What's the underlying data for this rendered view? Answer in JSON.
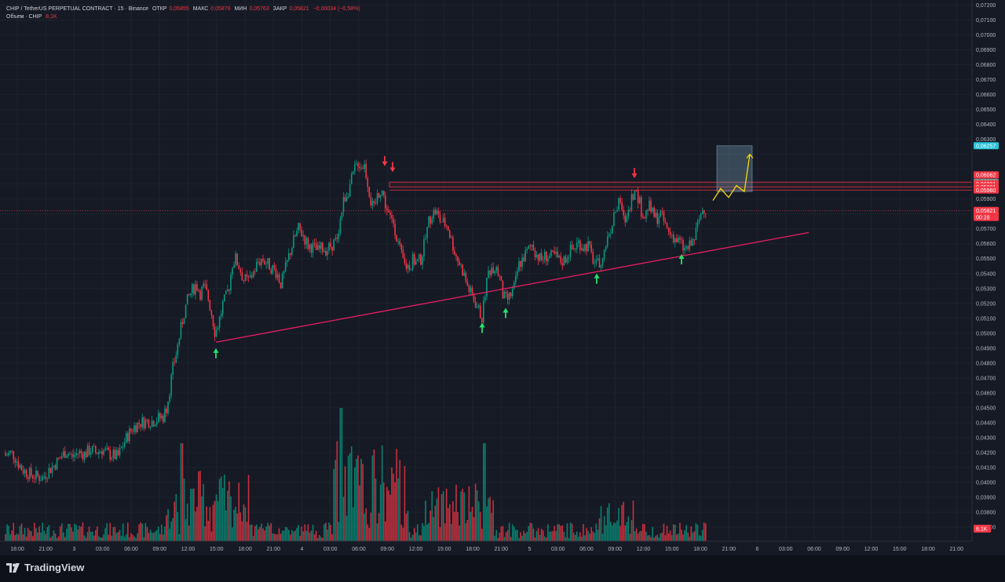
{
  "header": {
    "symbol_line": "CHIP / TetherUS PERPETUAL CONTRACT · 15 · Binance",
    "open_label": "ОТКР",
    "open_value": "0,05855",
    "high_label": "МАКС",
    "high_value": "0,05876",
    "low_label": "МИН",
    "low_value": "0,05763",
    "close_label": "ЗАКР",
    "close_value": "0,05821",
    "change": "−0,00034 (−0,58%)",
    "volume_label": "Объем · CHIP",
    "volume_value": "8,1K"
  },
  "price_axis": {
    "ticks": [
      "0,07200",
      "0,07100",
      "0,07000",
      "0,06900",
      "0,06800",
      "0,06700",
      "0,06600",
      "0,06500",
      "0,06400",
      "0,06300",
      "0,05900",
      "0,05700",
      "0,05600",
      "0,05500",
      "0,05400",
      "0,05300",
      "0,05200",
      "0,05100",
      "0,05000",
      "0,04900",
      "0,04800",
      "0,04700",
      "0,04600",
      "0,04500",
      "0,04400",
      "0,04300",
      "0,04200",
      "0,04100",
      "0,04000",
      "0,03900",
      "0,03800",
      "0,03700"
    ],
    "badges": [
      {
        "label": "0,06257",
        "value": 0.06257,
        "color": "#26c6da"
      },
      {
        "label": "0,06062",
        "value": 0.06062,
        "color": "#f23645"
      },
      {
        "label": "0,06013",
        "value": 0.06013,
        "color": "#808080"
      },
      {
        "label": "0,06001",
        "value": 0.06001,
        "color": "#f23645"
      },
      {
        "label": "0,05981",
        "value": 0.05981,
        "color": "#f23645"
      },
      {
        "label": "0,05960",
        "value": 0.0596,
        "color": "#f23645"
      }
    ],
    "last_price": "0,05821",
    "countdown": "00:28",
    "volume_badge": "8,1K"
  },
  "time_axis": {
    "labels": [
      "18:00",
      "21:00",
      "3",
      "03:00",
      "06:00",
      "09:00",
      "12:00",
      "15:00",
      "18:00",
      "21:00",
      "4",
      "03:00",
      "06:00",
      "09:00",
      "12:00",
      "15:00",
      "18:00",
      "21:00",
      "5",
      "03:00",
      "06:00",
      "09:00",
      "12:00",
      "15:00",
      "18:00",
      "21:00",
      "6",
      "03:00",
      "06:00",
      "09:00",
      "12:00",
      "15:00",
      "18:00",
      "21:00"
    ]
  },
  "chart_data": {
    "type": "candlestick",
    "symbol": "CHIP / TetherUS PERPETUAL CONTRACT",
    "interval": "15",
    "exchange": "Binance",
    "ylim": [
      0.0365,
      0.072
    ],
    "path": [
      [
        0,
        0.043
      ],
      [
        7,
        0.0418
      ],
      [
        14,
        0.042
      ],
      [
        18,
        0.0418
      ],
      [
        23,
        0.0413
      ],
      [
        28,
        0.0409
      ],
      [
        33,
        0.0407
      ],
      [
        40,
        0.0405
      ],
      [
        46,
        0.0404
      ],
      [
        54,
        0.0403
      ],
      [
        60,
        0.0407
      ],
      [
        68,
        0.0411
      ],
      [
        76,
        0.0416
      ],
      [
        84,
        0.0421
      ],
      [
        92,
        0.0417
      ],
      [
        100,
        0.042
      ],
      [
        108,
        0.0419
      ],
      [
        115,
        0.0422
      ],
      [
        122,
        0.042
      ],
      [
        130,
        0.0422
      ],
      [
        138,
        0.0419
      ],
      [
        145,
        0.0418
      ],
      [
        150,
        0.0417
      ],
      [
        155,
        0.0423
      ],
      [
        162,
        0.0431
      ],
      [
        170,
        0.0437
      ],
      [
        178,
        0.044
      ],
      [
        186,
        0.0441
      ],
      [
        194,
        0.0441
      ],
      [
        202,
        0.0443
      ],
      [
        208,
        0.0444
      ],
      [
        212,
        0.045
      ],
      [
        216,
        0.0462
      ],
      [
        220,
        0.0476
      ],
      [
        225,
        0.0488
      ],
      [
        230,
        0.0502
      ],
      [
        235,
        0.0515
      ],
      [
        240,
        0.0524
      ],
      [
        245,
        0.0529
      ],
      [
        250,
        0.0533
      ],
      [
        255,
        0.0527
      ],
      [
        260,
        0.0531
      ],
      [
        265,
        0.0524
      ],
      [
        270,
        0.0512
      ],
      [
        274,
        0.05
      ],
      [
        279,
        0.0508
      ],
      [
        284,
        0.052
      ],
      [
        288,
        0.0524
      ],
      [
        292,
        0.0532
      ],
      [
        296,
        0.0547
      ],
      [
        300,
        0.055
      ],
      [
        305,
        0.0544
      ],
      [
        310,
        0.0536
      ],
      [
        316,
        0.0535
      ],
      [
        322,
        0.054
      ],
      [
        328,
        0.0547
      ],
      [
        334,
        0.055
      ],
      [
        340,
        0.0547
      ],
      [
        346,
        0.0544
      ],
      [
        352,
        0.0541
      ],
      [
        358,
        0.0533
      ],
      [
        362,
        0.054
      ],
      [
        368,
        0.0552
      ],
      [
        374,
        0.0562
      ],
      [
        380,
        0.057
      ],
      [
        386,
        0.0566
      ],
      [
        392,
        0.0559
      ],
      [
        398,
        0.0558
      ],
      [
        404,
        0.0555
      ],
      [
        410,
        0.0557
      ],
      [
        416,
        0.0556
      ],
      [
        422,
        0.0559
      ],
      [
        428,
        0.0562
      ],
      [
        433,
        0.0575
      ],
      [
        438,
        0.059
      ],
      [
        443,
        0.0595
      ],
      [
        448,
        0.0603
      ],
      [
        452,
        0.061
      ],
      [
        456,
        0.0615
      ],
      [
        460,
        0.0612
      ],
      [
        464,
        0.0613
      ],
      [
        468,
        0.0602
      ],
      [
        472,
        0.0589
      ],
      [
        476,
        0.0582
      ],
      [
        481,
        0.0593
      ],
      [
        486,
        0.0597
      ],
      [
        491,
        0.0586
      ],
      [
        496,
        0.0577
      ],
      [
        501,
        0.0575
      ],
      [
        506,
        0.0563
      ],
      [
        511,
        0.0552
      ],
      [
        516,
        0.0545
      ],
      [
        521,
        0.0545
      ],
      [
        526,
        0.0549
      ],
      [
        531,
        0.0547
      ],
      [
        536,
        0.055
      ],
      [
        541,
        0.0561
      ],
      [
        546,
        0.0575
      ],
      [
        550,
        0.058
      ],
      [
        555,
        0.0582
      ],
      [
        560,
        0.0576
      ],
      [
        565,
        0.0574
      ],
      [
        570,
        0.0572
      ],
      [
        575,
        0.0562
      ],
      [
        580,
        0.0553
      ],
      [
        585,
        0.0547
      ],
      [
        590,
        0.0541
      ],
      [
        595,
        0.0532
      ],
      [
        600,
        0.0526
      ],
      [
        605,
        0.0521
      ],
      [
        610,
        0.0515
      ],
      [
        614,
        0.051
      ],
      [
        618,
        0.0528
      ],
      [
        622,
        0.0541
      ],
      [
        626,
        0.0544
      ],
      [
        631,
        0.0545
      ],
      [
        636,
        0.0538
      ],
      [
        641,
        0.0524
      ],
      [
        646,
        0.0522
      ],
      [
        651,
        0.0526
      ],
      [
        656,
        0.0532
      ],
      [
        660,
        0.0545
      ],
      [
        666,
        0.055
      ],
      [
        672,
        0.0555
      ],
      [
        678,
        0.056
      ],
      [
        683,
        0.0553
      ],
      [
        689,
        0.0549
      ],
      [
        695,
        0.0552
      ],
      [
        701,
        0.0551
      ],
      [
        707,
        0.0552
      ],
      [
        713,
        0.0548
      ],
      [
        719,
        0.0549
      ],
      [
        725,
        0.0555
      ],
      [
        731,
        0.0557
      ],
      [
        737,
        0.0561
      ],
      [
        743,
        0.0558
      ],
      [
        749,
        0.0559
      ],
      [
        754,
        0.0551
      ],
      [
        759,
        0.0545
      ],
      [
        764,
        0.0547
      ],
      [
        770,
        0.0556
      ],
      [
        775,
        0.0566
      ],
      [
        780,
        0.0574
      ],
      [
        785,
        0.0584
      ],
      [
        790,
        0.0588
      ],
      [
        795,
        0.0574
      ],
      [
        800,
        0.0582
      ],
      [
        805,
        0.0592
      ],
      [
        809,
        0.0595
      ],
      [
        813,
        0.0591
      ],
      [
        817,
        0.0582
      ],
      [
        821,
        0.0578
      ],
      [
        826,
        0.0586
      ],
      [
        831,
        0.058
      ],
      [
        836,
        0.0577
      ],
      [
        841,
        0.058
      ],
      [
        846,
        0.0574
      ],
      [
        851,
        0.0568
      ],
      [
        856,
        0.0566
      ],
      [
        862,
        0.0562
      ],
      [
        866,
        0.0561
      ],
      [
        871,
        0.0556
      ],
      [
        876,
        0.0557
      ],
      [
        880,
        0.0559
      ],
      [
        884,
        0.0563
      ],
      [
        888,
        0.0571
      ],
      [
        892,
        0.0579
      ],
      [
        896,
        0.0585
      ],
      [
        900,
        0.0582
      ]
    ],
    "trendline": {
      "x1": 275,
      "v1": 0.0494,
      "x2": 1030,
      "v2": 0.05675,
      "color": "#e91e63"
    },
    "resistance_zone": {
      "top": 0.06013,
      "bottom": 0.05981,
      "line": 0.0596,
      "color": "#f23645"
    },
    "target_box": {
      "x1": 913,
      "x2": 958,
      "top": 0.06257,
      "bottom": 0.0595
    },
    "projection": [
      [
        908,
        0.0589
      ],
      [
        918,
        0.0597
      ],
      [
        928,
        0.0591
      ],
      [
        938,
        0.0599
      ],
      [
        948,
        0.0595
      ],
      [
        955,
        0.062
      ]
    ],
    "up_arrows": [
      [
        275,
        0.049
      ],
      [
        614,
        0.0507
      ],
      [
        644,
        0.0517
      ],
      [
        760,
        0.054
      ],
      [
        868,
        0.0553
      ]
    ],
    "down_arrows": [
      [
        490,
        0.0612
      ],
      [
        500,
        0.0608
      ],
      [
        808,
        0.0604
      ]
    ],
    "volume_avg_label": "8,1K"
  }
}
